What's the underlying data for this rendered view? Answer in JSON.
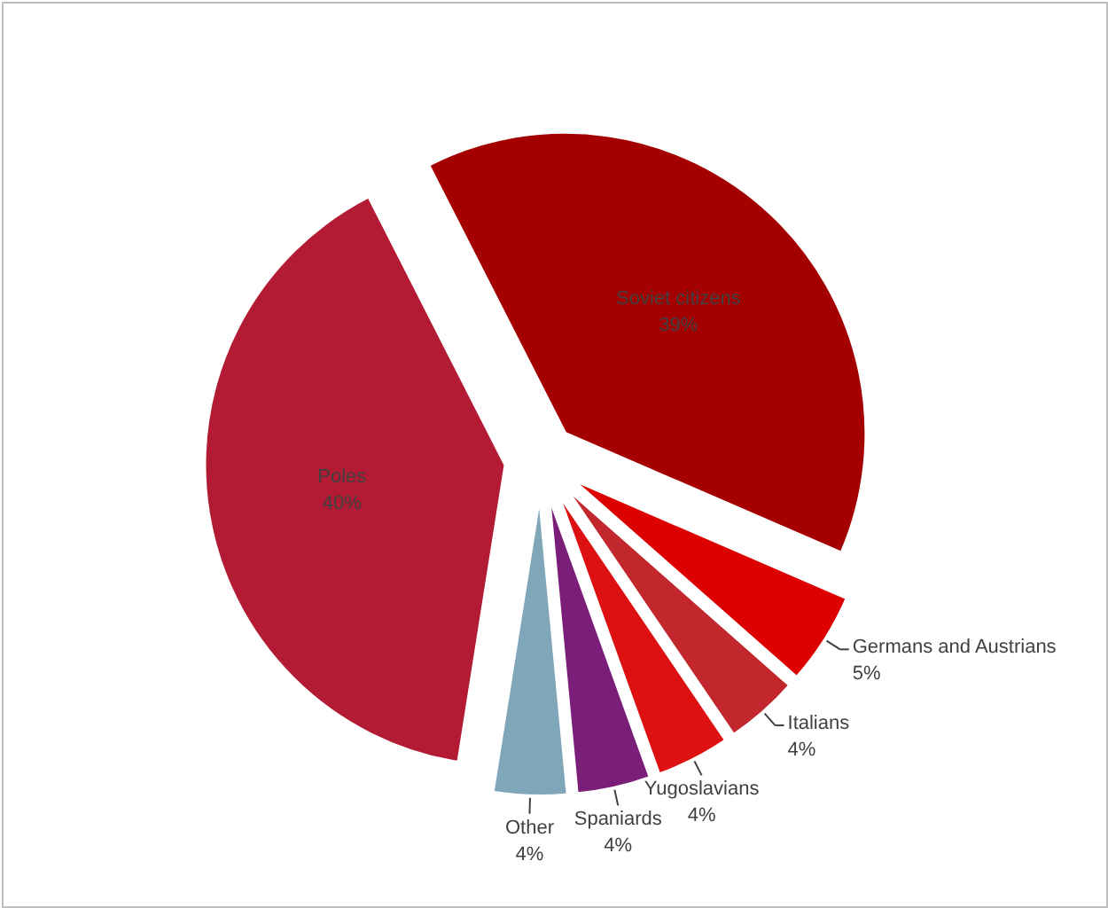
{
  "chart_data": {
    "type": "pie",
    "categories": [
      "Soviet citizens",
      "Germans and Austrians",
      "Italians",
      "Yugoslavians",
      "Spaniards",
      "Other",
      "Poles"
    ],
    "values": [
      39,
      5,
      4,
      4,
      4,
      4,
      40
    ],
    "value_labels": [
      "39%",
      "5%",
      "4%",
      "4%",
      "4%",
      "4%",
      "40%"
    ],
    "colors": [
      "#a50000",
      "#dd0000",
      "#c1272d",
      "#dd1111",
      "#7b1e7a",
      "#7fa7b9",
      "#b31b34"
    ]
  }
}
